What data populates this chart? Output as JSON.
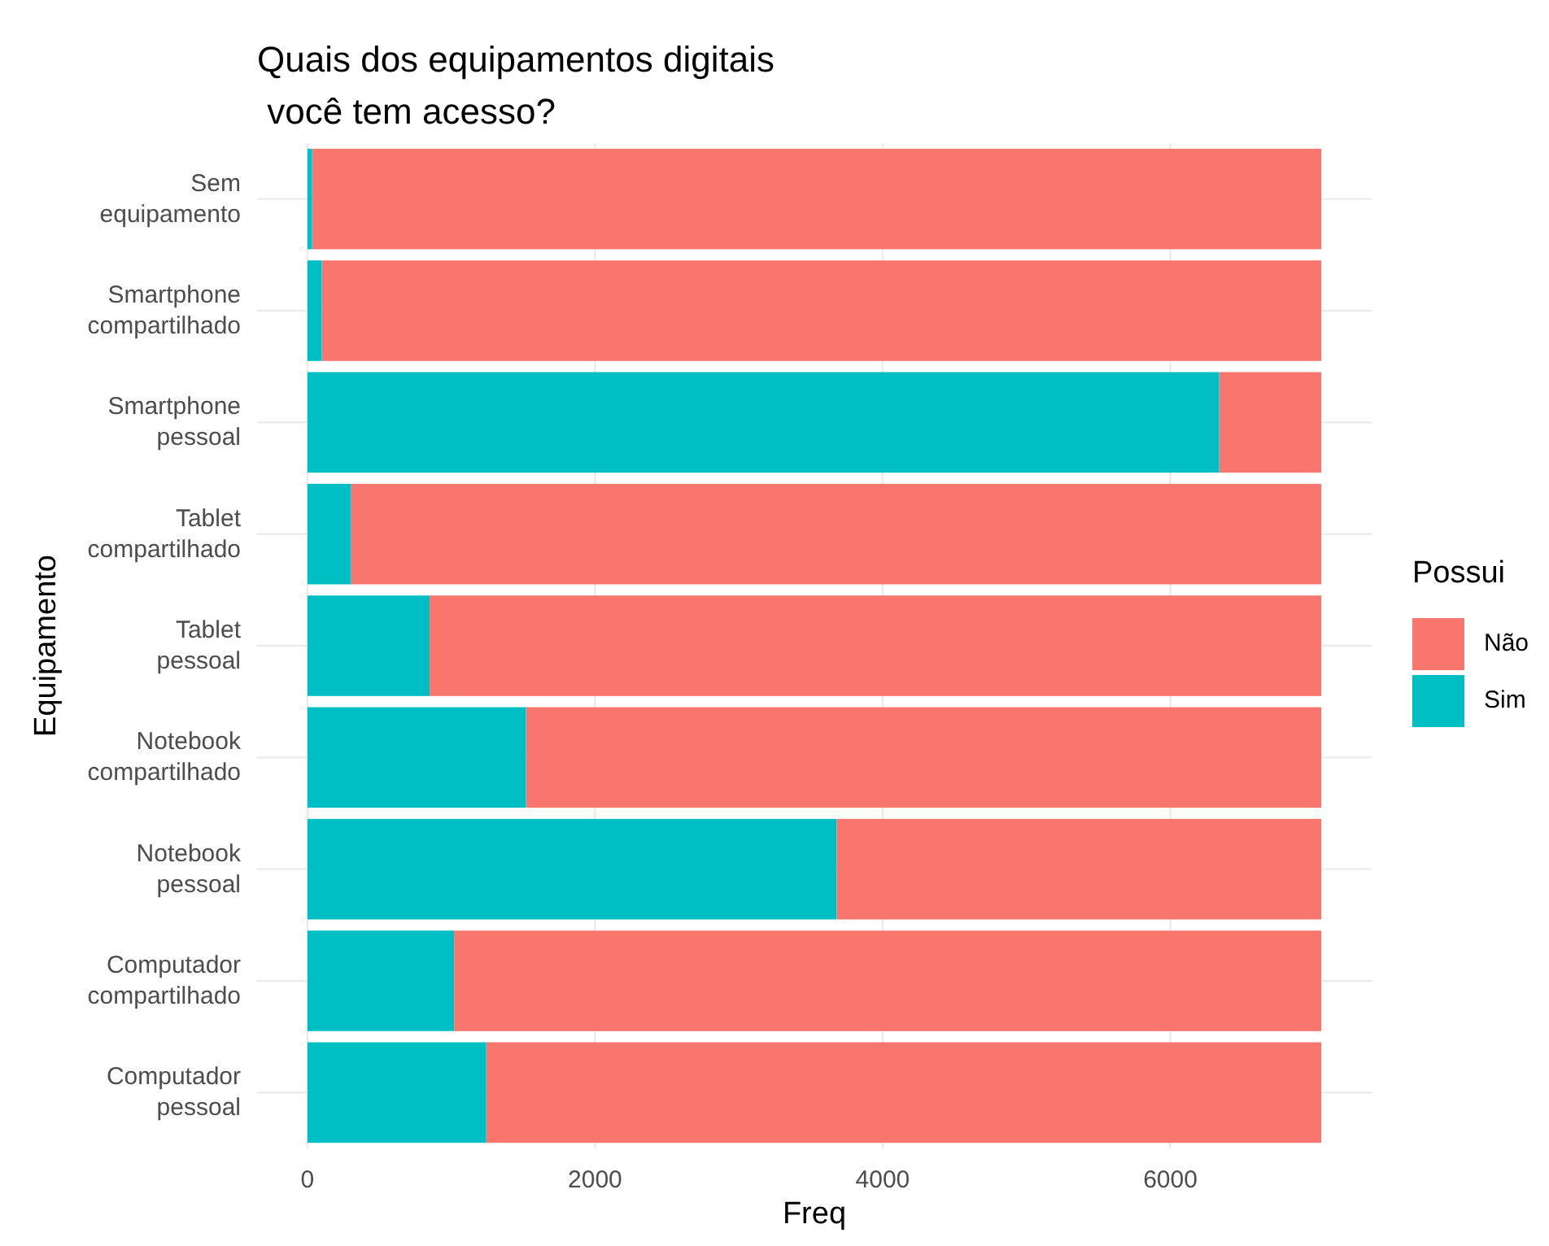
{
  "chart_data": {
    "type": "bar",
    "orientation": "horizontal",
    "stacked": true,
    "title": "Quais dos equipamentos digitais\n você tem acesso?",
    "xlabel": "Freq",
    "ylabel": "Equipamento",
    "legend_title": "Possui",
    "categories": [
      "Sem\nequipamento",
      "Smartphone\ncompartilhado",
      "Smartphone\npessoal",
      "Tablet\ncompartilhado",
      "Tablet\npessoal",
      "Notebook\ncompartilhado",
      "Notebook\npessoal",
      "Computador\ncompartilhado",
      "Computador\npessoal"
    ],
    "series": [
      {
        "name": "Sim",
        "color": "#00bfc4",
        "values": [
          30,
          100,
          6340,
          300,
          850,
          1520,
          3680,
          1020,
          1240
        ]
      },
      {
        "name": "Não",
        "color": "#f8766d",
        "values": [
          7020,
          6950,
          710,
          6750,
          6200,
          5530,
          3370,
          6030,
          5810
        ]
      }
    ],
    "xlim": [
      -350,
      7400
    ],
    "xticks": [
      0,
      2000,
      4000,
      6000
    ],
    "grid": true,
    "legend": "right"
  }
}
